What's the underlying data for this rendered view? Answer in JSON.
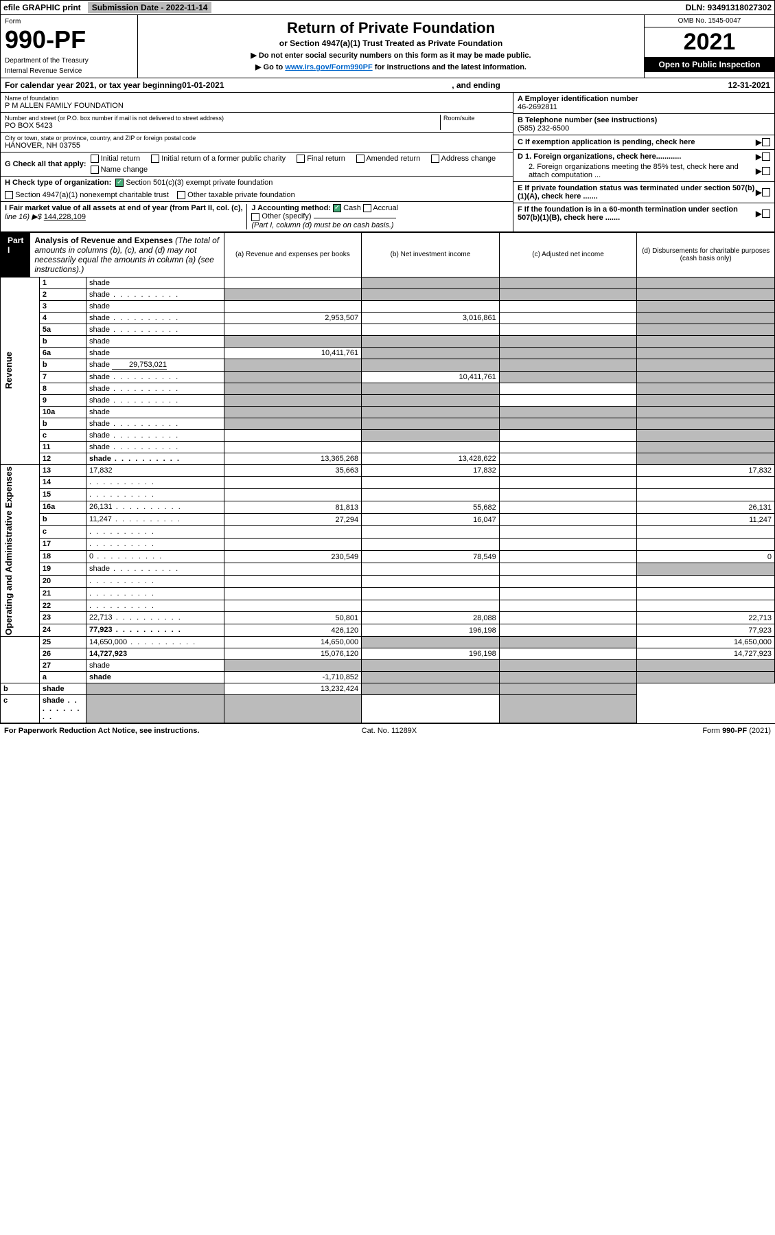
{
  "top": {
    "efile": "efile GRAPHIC print",
    "subdate": "Submission Date - 2022-11-14",
    "dln": "DLN: 93491318027302"
  },
  "header": {
    "form_label": "Form",
    "form_number": "990-PF",
    "dept1": "Department of the Treasury",
    "dept2": "Internal Revenue Service",
    "title": "Return of Private Foundation",
    "subtitle": "or Section 4947(a)(1) Trust Treated as Private Foundation",
    "instr1": "▶ Do not enter social security numbers on this form as it may be made public.",
    "instr2": "▶ Go to ",
    "instr2_link": "www.irs.gov/Form990PF",
    "instr2_after": " for instructions and the latest information.",
    "omb": "OMB No. 1545-0047",
    "year": "2021",
    "open": "Open to Public Inspection"
  },
  "calendar": {
    "prefix": "For calendar year 2021, or tax year beginning ",
    "begin": "01-01-2021",
    "middle": ", and ending ",
    "end": "12-31-2021"
  },
  "entity": {
    "name_label": "Name of foundation",
    "name": "P M ALLEN FAMILY FOUNDATION",
    "addr_label": "Number and street (or P.O. box number if mail is not delivered to street address)",
    "room_label": "Room/suite",
    "addr": "PO BOX 5423",
    "city_label": "City or town, state or province, country, and ZIP or foreign postal code",
    "city": "HANOVER, NH  03755",
    "ein_label": "A Employer identification number",
    "ein": "46-2692811",
    "phone_label": "B Telephone number (see instructions)",
    "phone": "(585) 232-6500",
    "c_label": "C If exemption application is pending, check here",
    "d1_label": "D 1. Foreign organizations, check here............",
    "d2_label": "2. Foreign organizations meeting the 85% test, check here and attach computation ...",
    "e_label": "E  If private foundation status was terminated under section 507(b)(1)(A), check here .......",
    "f_label": "F  If the foundation is in a 60-month termination under section 507(b)(1)(B), check here ......."
  },
  "g": {
    "label": "G Check all that apply:",
    "opts": [
      "Initial return",
      "Final return",
      "Address change",
      "Initial return of a former public charity",
      "Amended return",
      "Name change"
    ]
  },
  "h": {
    "label": "H Check type of organization:",
    "opt1": "Section 501(c)(3) exempt private foundation",
    "opt2": "Section 4947(a)(1) nonexempt charitable trust",
    "opt3": "Other taxable private foundation"
  },
  "i": {
    "label": "I Fair market value of all assets at end of year (from Part II, col. (c),",
    "line16": "line 16) ▶$ ",
    "value": "144,228,109"
  },
  "j": {
    "label": "J Accounting method:",
    "cash": "Cash",
    "accrual": "Accrual",
    "other": "Other (specify)",
    "note": "(Part I, column (d) must be on cash basis.)"
  },
  "part1": {
    "label": "Part I",
    "title_bold": "Analysis of Revenue and Expenses",
    "title_rest": " (The total of amounts in columns (b), (c), and (d) may not necessarily equal the amounts in column (a) (see instructions).)",
    "col_a": "(a) Revenue and expenses per books",
    "col_b": "(b) Net investment income",
    "col_c": "(c) Adjusted net income",
    "col_d": "(d) Disbursements for charitable purposes (cash basis only)"
  },
  "sides": {
    "revenue": "Revenue",
    "expenses": "Operating and Administrative Expenses"
  },
  "rows": [
    {
      "n": "1",
      "d": "shade",
      "a": "",
      "b": "shade",
      "c": "shade"
    },
    {
      "n": "2",
      "d": "shade",
      "dots": true,
      "a": "shade",
      "b": "shade",
      "c": "shade"
    },
    {
      "n": "3",
      "d": "shade",
      "a": "",
      "b": "",
      "c": ""
    },
    {
      "n": "4",
      "d": "shade",
      "dots": true,
      "a": "2,953,507",
      "b": "3,016,861",
      "c": ""
    },
    {
      "n": "5a",
      "d": "shade",
      "dots": true,
      "a": "",
      "b": "",
      "c": ""
    },
    {
      "n": "b",
      "d": "shade",
      "a": "shade",
      "b": "shade",
      "c": "shade"
    },
    {
      "n": "6a",
      "d": "shade",
      "a": "10,411,761",
      "b": "shade",
      "c": "shade"
    },
    {
      "n": "b",
      "d": "shade",
      "inline": "29,753,021",
      "a": "shade",
      "b": "shade",
      "c": "shade"
    },
    {
      "n": "7",
      "d": "shade",
      "dots": true,
      "a": "shade",
      "b": "10,411,761",
      "c": "shade"
    },
    {
      "n": "8",
      "d": "shade",
      "dots": true,
      "a": "shade",
      "b": "shade",
      "c": ""
    },
    {
      "n": "9",
      "d": "shade",
      "dots": true,
      "a": "shade",
      "b": "shade",
      "c": ""
    },
    {
      "n": "10a",
      "d": "shade",
      "a": "shade",
      "b": "shade",
      "c": "shade"
    },
    {
      "n": "b",
      "d": "shade",
      "dots": true,
      "a": "shade",
      "b": "shade",
      "c": "shade"
    },
    {
      "n": "c",
      "d": "shade",
      "dots": true,
      "a": "",
      "b": "shade",
      "c": ""
    },
    {
      "n": "11",
      "d": "shade",
      "dots": true,
      "a": "",
      "b": "",
      "c": ""
    },
    {
      "n": "12",
      "d": "shade",
      "dots": true,
      "bold": true,
      "a": "13,365,268",
      "b": "13,428,622",
      "c": ""
    },
    {
      "n": "13",
      "d": "17,832",
      "a": "35,663",
      "b": "17,832",
      "c": ""
    },
    {
      "n": "14",
      "d": "",
      "dots": true,
      "a": "",
      "b": "",
      "c": ""
    },
    {
      "n": "15",
      "d": "",
      "dots": true,
      "a": "",
      "b": "",
      "c": ""
    },
    {
      "n": "16a",
      "d": "26,131",
      "dots": true,
      "a": "81,813",
      "b": "55,682",
      "c": ""
    },
    {
      "n": "b",
      "d": "11,247",
      "dots": true,
      "a": "27,294",
      "b": "16,047",
      "c": ""
    },
    {
      "n": "c",
      "d": "",
      "dots": true,
      "a": "",
      "b": "",
      "c": ""
    },
    {
      "n": "17",
      "d": "",
      "dots": true,
      "a": "",
      "b": "",
      "c": ""
    },
    {
      "n": "18",
      "d": "0",
      "dots": true,
      "a": "230,549",
      "b": "78,549",
      "c": ""
    },
    {
      "n": "19",
      "d": "shade",
      "dots": true,
      "a": "",
      "b": "",
      "c": ""
    },
    {
      "n": "20",
      "d": "",
      "dots": true,
      "a": "",
      "b": "",
      "c": ""
    },
    {
      "n": "21",
      "d": "",
      "dots": true,
      "a": "",
      "b": "",
      "c": ""
    },
    {
      "n": "22",
      "d": "",
      "dots": true,
      "a": "",
      "b": "",
      "c": ""
    },
    {
      "n": "23",
      "d": "22,713",
      "dots": true,
      "a": "50,801",
      "b": "28,088",
      "c": ""
    },
    {
      "n": "24",
      "d": "77,923",
      "dots": true,
      "bold": true,
      "a": "426,120",
      "b": "196,198",
      "c": ""
    },
    {
      "n": "25",
      "d": "14,650,000",
      "dots": true,
      "a": "14,650,000",
      "b": "shade",
      "c": "shade"
    },
    {
      "n": "26",
      "d": "14,727,923",
      "bold": true,
      "a": "15,076,120",
      "b": "196,198",
      "c": ""
    },
    {
      "n": "27",
      "d": "shade",
      "a": "shade",
      "b": "shade",
      "c": "shade"
    },
    {
      "n": "a",
      "d": "shade",
      "bold": true,
      "a": "-1,710,852",
      "b": "shade",
      "c": "shade"
    },
    {
      "n": "b",
      "d": "shade",
      "bold": true,
      "a": "shade",
      "b": "13,232,424",
      "c": "shade"
    },
    {
      "n": "c",
      "d": "shade",
      "dots": true,
      "bold": true,
      "a": "shade",
      "b": "shade",
      "c": ""
    }
  ],
  "footer": {
    "left": "For Paperwork Reduction Act Notice, see instructions.",
    "center": "Cat. No. 11289X",
    "right": "Form 990-PF (2021)"
  }
}
